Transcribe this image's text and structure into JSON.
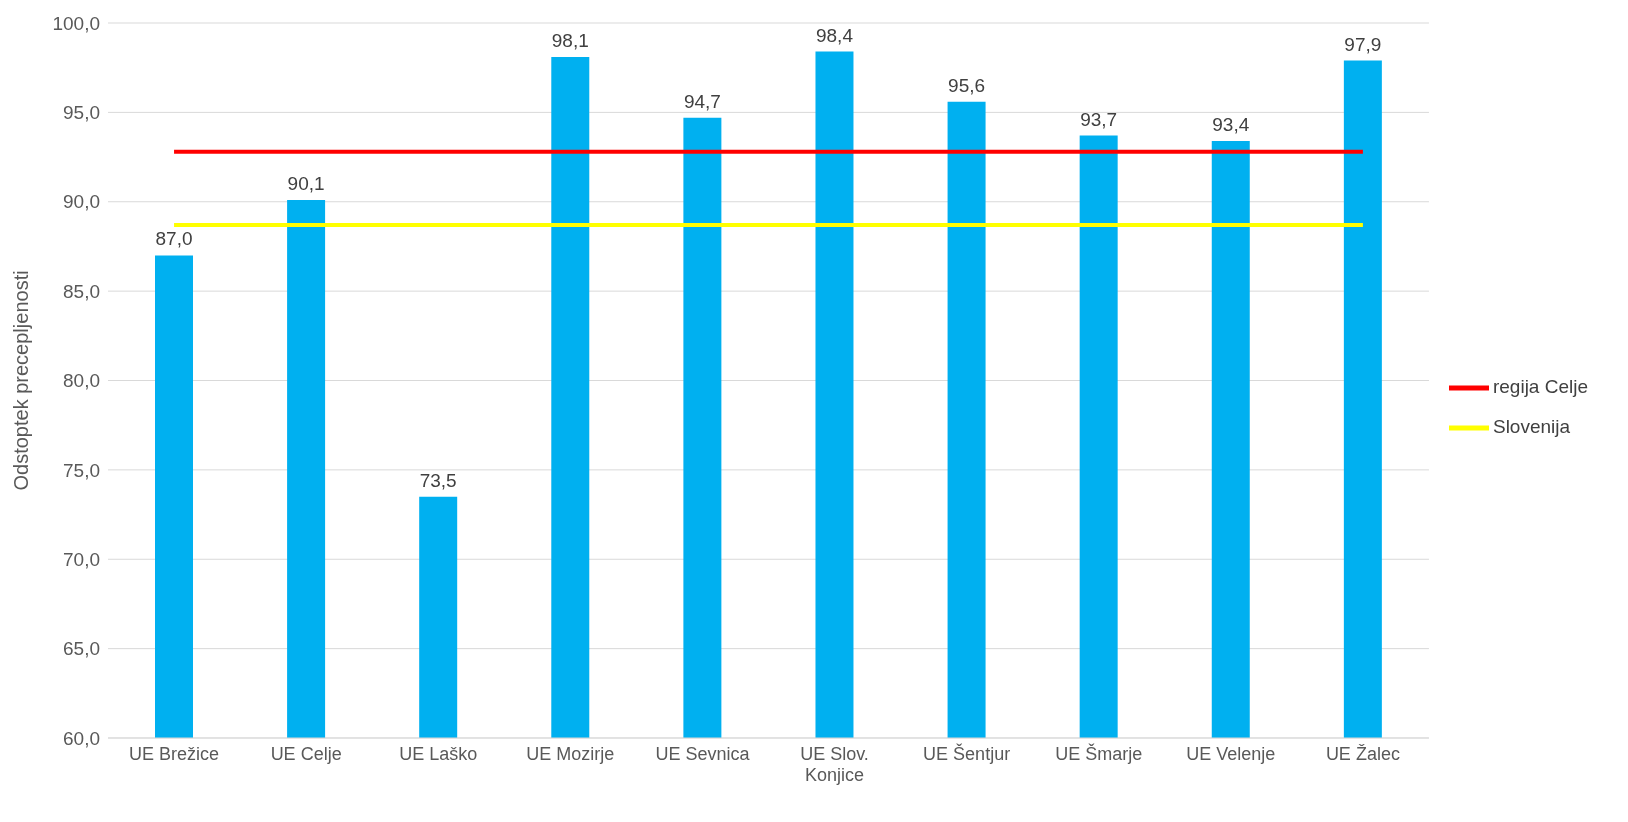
{
  "chart_data": {
    "type": "bar",
    "ylabel": "Odstoptek precepljenosti",
    "categories": [
      "UE Brežice",
      "UE Celje",
      "UE Laško",
      "UE Mozirje",
      "UE Sevnica",
      "UE Slov. Konjice",
      "UE Šentjur",
      "UE Šmarje",
      "UE Velenje",
      "UE Žalec"
    ],
    "series": [
      {
        "color": "#00b0f0",
        "values": [
          87.0,
          90.1,
          73.5,
          98.1,
          94.7,
          98.4,
          95.6,
          93.7,
          93.4,
          97.9
        ],
        "value_labels": [
          "87,0",
          "90,1",
          "73,5",
          "98,1",
          "94,7",
          "98,4",
          "95,6",
          "93,7",
          "93,4",
          "97,9"
        ]
      },
      {
        "type": "line",
        "name": "regija Celje",
        "color": "#ff0000",
        "values": [
          92.8,
          92.8,
          92.8,
          92.8,
          92.8,
          92.8,
          92.8,
          92.8,
          92.8,
          92.8
        ]
      },
      {
        "type": "line",
        "name": "Slovenija",
        "color": "#ffff00",
        "values": [
          88.7,
          88.7,
          88.7,
          88.7,
          88.7,
          88.7,
          88.7,
          88.7,
          88.7,
          88.7
        ]
      }
    ],
    "ylim": [
      60,
      100
    ],
    "yticks": [
      {
        "value": 60,
        "label": "60,0"
      },
      {
        "value": 65,
        "label": "65,0"
      },
      {
        "value": 70,
        "label": "70,0"
      },
      {
        "value": 75,
        "label": "75,0"
      },
      {
        "value": 80,
        "label": "80,0"
      },
      {
        "value": 85,
        "label": "85,0"
      },
      {
        "value": 90,
        "label": "90,0"
      },
      {
        "value": 95,
        "label": "95,0"
      },
      {
        "value": 100,
        "label": "100,0"
      }
    ],
    "grid": "y",
    "legend": "right",
    "marker": "none",
    "line_style": "solid"
  }
}
